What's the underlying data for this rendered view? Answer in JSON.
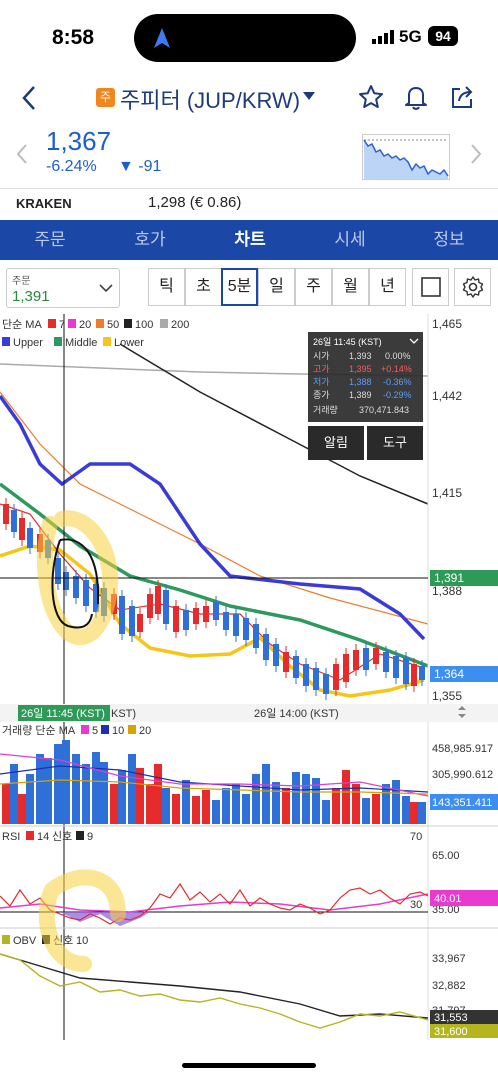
{
  "status": {
    "time": "8:58",
    "network": "5G",
    "battery": "94"
  },
  "header": {
    "badge": "주",
    "title": "주피터 (JUP/KRW)"
  },
  "quote": {
    "price": "1,367",
    "change_pct": "-6.24%",
    "change_abs": "▼ -91"
  },
  "exchange": {
    "name": "KRAKEN",
    "price": "1,298 (€ 0.86)"
  },
  "tabs": [
    "주문",
    "호가",
    "차트",
    "시세",
    "정보"
  ],
  "order_select": {
    "label": "주문",
    "value": "1,391"
  },
  "periods": [
    "틱",
    "초",
    "5분",
    "일",
    "주",
    "월",
    "년"
  ],
  "main_chart": {
    "legend_ma": [
      "단순 MA",
      "7",
      "20",
      "50",
      "100",
      "200"
    ],
    "legend_bb": [
      "Upper",
      "Middle",
      "Lower"
    ],
    "y_ticks": [
      "1,465",
      "1,442",
      "1,415",
      "1,388",
      "1,355"
    ],
    "price_tags": {
      "high": "1,391",
      "current": "1,364"
    },
    "tooltip": {
      "time": "26일 11:45 (KST)",
      "rows": [
        [
          "시가",
          "1,393",
          "0.00%"
        ],
        [
          "고가",
          "1,395",
          "+0.14%"
        ],
        [
          "저가",
          "1,388",
          "-0.36%"
        ],
        [
          "종가",
          "1,389",
          "-0.29%"
        ]
      ],
      "vol_label": "거래량",
      "vol_value": "370,471.843"
    },
    "buttons": {
      "alert": "알림",
      "tools": "도구"
    },
    "x_labels": {
      "cursor": "26일 11:45 (KST)",
      "partial": "KST)",
      "mid": "26일 14:00 (KST)"
    }
  },
  "volume_chart": {
    "legend": [
      "거래량 단순 MA",
      "5",
      "10",
      "20"
    ],
    "y_ticks": [
      "458,985.917",
      "305,990.612"
    ],
    "current": "143,351.411"
  },
  "rsi_chart": {
    "legend": [
      "RSI",
      "14",
      "신호",
      "9"
    ],
    "y_ticks": [
      "65.00",
      "35.00"
    ],
    "left_tag": "70",
    "right_tag": "30",
    "current": "40.01"
  },
  "obv_chart": {
    "legend": [
      "OBV",
      "신호",
      "10"
    ],
    "y_ticks": [
      "33,967",
      "32,882",
      "31,797"
    ],
    "current": "31,553",
    "current2": "31,600"
  },
  "colors": {
    "accent": "#1b47a7",
    "price_down": "#1a5fd0",
    "up": "#e52b2b",
    "down": "#2f6fd8",
    "ma7": "#e52b2b",
    "ma20": "#e83ad0",
    "ma50": "#f07b2a",
    "ma100": "#222222",
    "ma200": "#aaaaaa",
    "bb_upper": "#3a3ad8",
    "bb_middle": "#2b9a5c",
    "bb_lower": "#f5c518"
  }
}
